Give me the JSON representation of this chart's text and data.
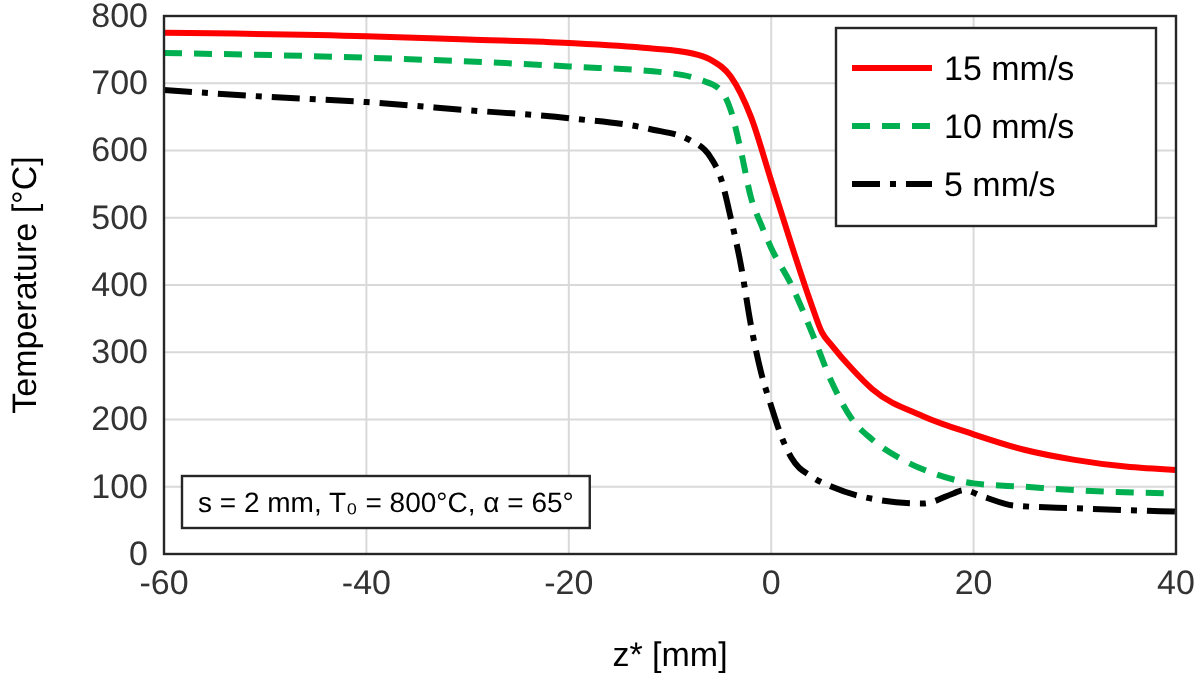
{
  "chart_data": {
    "type": "line",
    "xlabel": "z* [mm]",
    "ylabel": "Temperature [°C]",
    "xlim": [
      -60,
      40
    ],
    "xticks": [
      -60,
      -40,
      -20,
      0,
      20,
      40
    ],
    "ylim": [
      0,
      800
    ],
    "yticks": [
      0,
      100,
      200,
      300,
      400,
      500,
      600,
      700,
      800
    ],
    "grid": true,
    "legend": "top right",
    "marker": "none",
    "annotations": [
      "s = 2 mm, T₀ = 800°C, α = 65°"
    ],
    "series": [
      {
        "name": "15 mm/s",
        "color": "#ff0000",
        "line_style": "solid",
        "x": [
          -60,
          -40,
          -30,
          -20,
          -12,
          -8,
          -6,
          -4,
          -2,
          0,
          2,
          4,
          5,
          6,
          8,
          10,
          15,
          20,
          25,
          30,
          35,
          40
        ],
        "values": [
          775,
          770,
          765,
          760,
          752,
          745,
          735,
          710,
          650,
          555,
          460,
          370,
          330,
          310,
          275,
          245,
          205,
          178,
          155,
          140,
          130,
          125
        ]
      },
      {
        "name": "10 mm/s",
        "color": "#00b050",
        "line_style": "dashed",
        "x": [
          -60,
          -40,
          -20,
          -10,
          -7,
          -5,
          -4,
          -3,
          -2,
          -1,
          0,
          2,
          4,
          6,
          8,
          10,
          13,
          16,
          20,
          25,
          30,
          40
        ],
        "values": [
          745,
          738,
          725,
          715,
          705,
          690,
          660,
          600,
          530,
          490,
          455,
          400,
          330,
          255,
          200,
          170,
          140,
          120,
          105,
          100,
          95,
          90
        ]
      },
      {
        "name": "5 mm/s",
        "color": "#000000",
        "line_style": "dashdot",
        "x": [
          -60,
          -50,
          -40,
          -30,
          -20,
          -12,
          -8,
          -6,
          -5,
          -4,
          -3,
          -2,
          -1,
          0,
          1,
          2,
          4,
          6,
          10,
          15,
          18,
          19,
          21,
          24,
          30,
          40
        ],
        "values": [
          690,
          680,
          672,
          660,
          648,
          632,
          615,
          590,
          560,
          500,
          430,
          340,
          270,
          220,
          175,
          143,
          115,
          100,
          82,
          75,
          90,
          95,
          85,
          72,
          68,
          63
        ]
      }
    ]
  }
}
